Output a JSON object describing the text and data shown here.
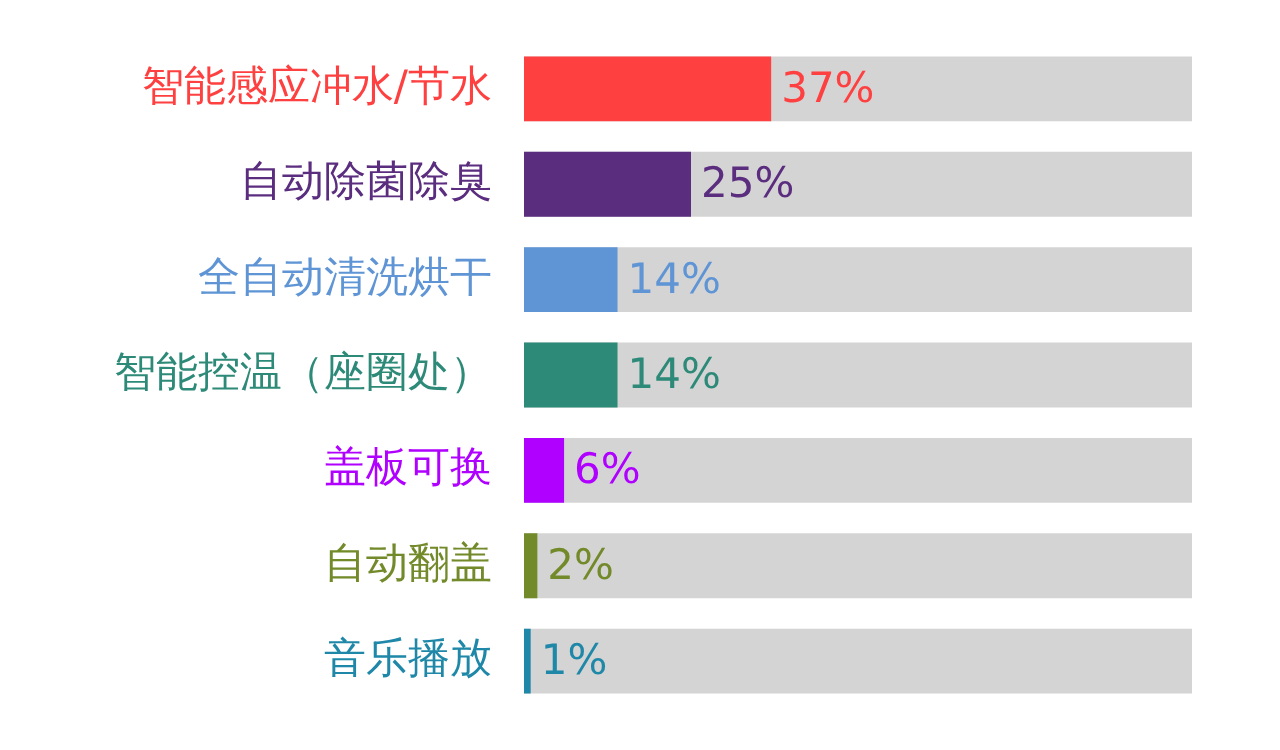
{
  "chart_data": {
    "type": "bar",
    "orientation": "horizontal",
    "categories": [
      "智能感应冲水/节水",
      "自动除菌除臭",
      "全自动清洗烘干",
      "智能控温（座圈处）",
      "盖板可换",
      "自动翻盖",
      "音乐播放"
    ],
    "values": [
      37,
      25,
      14,
      14,
      6,
      2,
      1
    ],
    "colors": [
      "#ff4040",
      "#5b2d7f",
      "#5f95d5",
      "#2e8a78",
      "#b000ff",
      "#738a2a",
      "#1f88a8"
    ],
    "value_labels": [
      "37%",
      "25%",
      "14%",
      "14%",
      "6%",
      "2%",
      "1%"
    ],
    "xlim": [
      0,
      100
    ],
    "tick_labels": "y",
    "legend": false
  }
}
